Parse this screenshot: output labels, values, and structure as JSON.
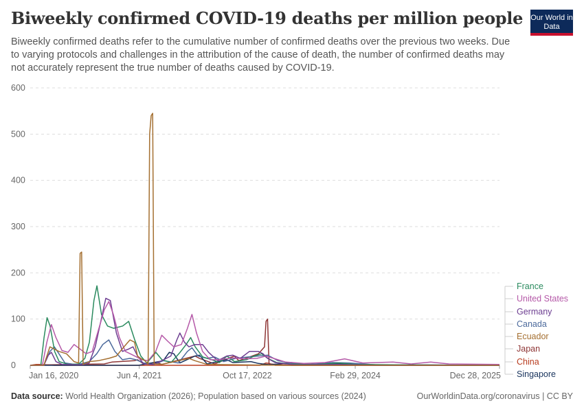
{
  "header": {
    "title": "Biweekly confirmed COVID-19 deaths per million people",
    "subtitle": "Biweekly confirmed deaths refer to the cumulative number of confirmed deaths over the previous two weeks. Due to varying protocols and challenges in the attribution of the cause of death, the number of confirmed deaths may not accurately represent the true number of deaths caused by COVID-19.",
    "logo": "Our World in Data"
  },
  "footer": {
    "source_label": "Data source:",
    "source_text": "World Health Organization (2026); Population based on various sources (2024)",
    "right_text": "OurWorldinData.org/coronavirus | CC BY"
  },
  "colors": {
    "logo_bg": "#0d2a5a",
    "logo_accent": "#c8102e",
    "grid": "#dddddd"
  },
  "chart_data": {
    "type": "line",
    "title": "Biweekly confirmed COVID-19 deaths per million people",
    "ylim": [
      0,
      600
    ],
    "yticks": [
      0,
      100,
      200,
      300,
      400,
      500,
      600
    ],
    "xlim": [
      "2020-01-01",
      "2026-01-01"
    ],
    "xticks": [
      {
        "date": "2020-01-16",
        "label": "Jan 16, 2020"
      },
      {
        "date": "2021-06-04",
        "label": "Jun 4, 2021"
      },
      {
        "date": "2022-10-17",
        "label": "Oct 17, 2022"
      },
      {
        "date": "2024-02-29",
        "label": "Feb 29, 2024"
      },
      {
        "date": "2025-12-28",
        "label": "Dec 28, 2025"
      }
    ],
    "grid": true,
    "legend_position": "right",
    "series": [
      {
        "name": "France",
        "color": "#2a8a5e",
        "points": [
          [
            "2020-01-16",
            0
          ],
          [
            "2020-03-05",
            0
          ],
          [
            "2020-03-20",
            60
          ],
          [
            "2020-04-03",
            103
          ],
          [
            "2020-04-17",
            85
          ],
          [
            "2020-05-08",
            30
          ],
          [
            "2020-05-29",
            8
          ],
          [
            "2020-07-10",
            2
          ],
          [
            "2020-08-28",
            3
          ],
          [
            "2020-09-25",
            15
          ],
          [
            "2020-10-16",
            50
          ],
          [
            "2020-11-06",
            140
          ],
          [
            "2020-11-20",
            172
          ],
          [
            "2020-12-11",
            110
          ],
          [
            "2021-01-08",
            85
          ],
          [
            "2021-02-05",
            80
          ],
          [
            "2021-03-19",
            85
          ],
          [
            "2021-04-16",
            95
          ],
          [
            "2021-05-14",
            55
          ],
          [
            "2021-06-11",
            20
          ],
          [
            "2021-07-09",
            5
          ],
          [
            "2021-08-20",
            28
          ],
          [
            "2021-09-17",
            12
          ],
          [
            "2021-10-29",
            6
          ],
          [
            "2021-12-10",
            28
          ],
          [
            "2022-01-07",
            45
          ],
          [
            "2022-01-28",
            60
          ],
          [
            "2022-02-18",
            40
          ],
          [
            "2022-03-25",
            18
          ],
          [
            "2022-05-06",
            12
          ],
          [
            "2022-06-10",
            6
          ],
          [
            "2022-07-15",
            20
          ],
          [
            "2022-08-19",
            8
          ],
          [
            "2022-10-14",
            12
          ],
          [
            "2022-11-18",
            20
          ],
          [
            "2022-12-23",
            25
          ],
          [
            "2023-01-20",
            15
          ],
          [
            "2023-03-03",
            6
          ],
          [
            "2023-05-05",
            3
          ],
          [
            "2023-09-01",
            2
          ],
          [
            "2023-12-15",
            5
          ],
          [
            "2024-03-01",
            2
          ],
          [
            "2024-09-01",
            1
          ],
          [
            "2025-12-28",
            0
          ]
        ]
      },
      {
        "name": "United States",
        "color": "#b559a8",
        "points": [
          [
            "2020-01-16",
            0
          ],
          [
            "2020-03-12",
            0
          ],
          [
            "2020-04-02",
            50
          ],
          [
            "2020-04-23",
            88
          ],
          [
            "2020-05-14",
            60
          ],
          [
            "2020-06-11",
            32
          ],
          [
            "2020-07-09",
            28
          ],
          [
            "2020-08-06",
            45
          ],
          [
            "2020-09-03",
            35
          ],
          [
            "2020-10-01",
            25
          ],
          [
            "2020-10-29",
            30
          ],
          [
            "2020-11-26",
            75
          ],
          [
            "2020-12-24",
            120
          ],
          [
            "2021-01-14",
            138
          ],
          [
            "2021-02-04",
            110
          ],
          [
            "2021-03-04",
            60
          ],
          [
            "2021-04-01",
            30
          ],
          [
            "2021-05-06",
            22
          ],
          [
            "2021-06-17",
            12
          ],
          [
            "2021-07-15",
            10
          ],
          [
            "2021-08-19",
            30
          ],
          [
            "2021-09-16",
            65
          ],
          [
            "2021-10-14",
            52
          ],
          [
            "2021-11-11",
            40
          ],
          [
            "2021-12-16",
            45
          ],
          [
            "2022-01-13",
            80
          ],
          [
            "2022-02-03",
            110
          ],
          [
            "2022-02-24",
            70
          ],
          [
            "2022-03-24",
            30
          ],
          [
            "2022-04-28",
            12
          ],
          [
            "2022-06-09",
            12
          ],
          [
            "2022-08-11",
            16
          ],
          [
            "2022-10-06",
            14
          ],
          [
            "2022-12-01",
            15
          ],
          [
            "2023-01-12",
            20
          ],
          [
            "2023-02-16",
            15
          ],
          [
            "2023-04-13",
            7
          ],
          [
            "2023-07-06",
            4
          ],
          [
            "2023-10-12",
            6
          ],
          [
            "2024-01-11",
            14
          ],
          [
            "2024-04-04",
            5
          ],
          [
            "2024-08-22",
            7
          ],
          [
            "2024-11-14",
            3
          ],
          [
            "2025-02-13",
            7
          ],
          [
            "2025-05-08",
            3
          ],
          [
            "2025-12-28",
            2
          ]
        ]
      },
      {
        "name": "Germany",
        "color": "#6d3e91",
        "points": [
          [
            "2020-01-16",
            0
          ],
          [
            "2020-03-19",
            0
          ],
          [
            "2020-04-09",
            22
          ],
          [
            "2020-04-23",
            28
          ],
          [
            "2020-05-14",
            8
          ],
          [
            "2020-06-11",
            2
          ],
          [
            "2020-09-17",
            1
          ],
          [
            "2020-10-15",
            5
          ],
          [
            "2020-11-12",
            40
          ],
          [
            "2020-12-10",
            100
          ],
          [
            "2020-12-31",
            145
          ],
          [
            "2021-01-21",
            140
          ],
          [
            "2021-02-18",
            70
          ],
          [
            "2021-03-18",
            30
          ],
          [
            "2021-04-15",
            35
          ],
          [
            "2021-05-06",
            40
          ],
          [
            "2021-05-27",
            20
          ],
          [
            "2021-06-24",
            3
          ],
          [
            "2021-08-05",
            2
          ],
          [
            "2021-09-16",
            10
          ],
          [
            "2021-10-28",
            20
          ],
          [
            "2021-11-25",
            55
          ],
          [
            "2021-12-09",
            70
          ],
          [
            "2021-12-30",
            50
          ],
          [
            "2022-01-20",
            40
          ],
          [
            "2022-02-17",
            45
          ],
          [
            "2022-03-24",
            45
          ],
          [
            "2022-04-21",
            28
          ],
          [
            "2022-06-02",
            10
          ],
          [
            "2022-07-14",
            20
          ],
          [
            "2022-08-11",
            22
          ],
          [
            "2022-09-15",
            15
          ],
          [
            "2022-10-27",
            30
          ],
          [
            "2022-12-08",
            30
          ],
          [
            "2022-12-29",
            25
          ],
          [
            "2023-01-19",
            15
          ],
          [
            "2023-02-23",
            6
          ],
          [
            "2023-04-20",
            3
          ],
          [
            "2023-06-01",
            1
          ],
          [
            "2023-12-15",
            2
          ],
          [
            "2024-06-01",
            0
          ],
          [
            "2025-12-28",
            0
          ]
        ]
      },
      {
        "name": "Canada",
        "color": "#4c6a9c",
        "points": [
          [
            "2020-01-16",
            0
          ],
          [
            "2020-03-19",
            0
          ],
          [
            "2020-04-16",
            30
          ],
          [
            "2020-05-07",
            40
          ],
          [
            "2020-05-28",
            25
          ],
          [
            "2020-06-25",
            5
          ],
          [
            "2020-08-20",
            1
          ],
          [
            "2020-10-15",
            8
          ],
          [
            "2020-11-19",
            25
          ],
          [
            "2020-12-17",
            45
          ],
          [
            "2021-01-14",
            55
          ],
          [
            "2021-02-11",
            30
          ],
          [
            "2021-03-18",
            12
          ],
          [
            "2021-04-22",
            15
          ],
          [
            "2021-05-20",
            12
          ],
          [
            "2021-06-24",
            5
          ],
          [
            "2021-08-12",
            2
          ],
          [
            "2021-09-23",
            10
          ],
          [
            "2021-10-21",
            8
          ],
          [
            "2021-12-02",
            5
          ],
          [
            "2022-01-13",
            30
          ],
          [
            "2022-02-03",
            38
          ],
          [
            "2022-03-03",
            20
          ],
          [
            "2022-04-14",
            15
          ],
          [
            "2022-05-19",
            18
          ],
          [
            "2022-06-30",
            8
          ],
          [
            "2022-08-25",
            15
          ],
          [
            "2022-10-20",
            18
          ],
          [
            "2022-12-08",
            20
          ],
          [
            "2023-01-19",
            22
          ],
          [
            "2023-03-09",
            10
          ],
          [
            "2023-05-04",
            5
          ],
          [
            "2023-08-03",
            2
          ],
          [
            "2023-11-16",
            6
          ],
          [
            "2024-02-01",
            5
          ],
          [
            "2024-06-01",
            1
          ],
          [
            "2024-12-01",
            1
          ],
          [
            "2025-12-28",
            0
          ]
        ]
      },
      {
        "name": "Ecuador",
        "color": "#a46f30",
        "points": [
          [
            "2020-01-16",
            0
          ],
          [
            "2020-03-19",
            0
          ],
          [
            "2020-03-26",
            10
          ],
          [
            "2020-04-16",
            40
          ],
          [
            "2020-05-07",
            35
          ],
          [
            "2020-05-28",
            30
          ],
          [
            "2020-07-02",
            25
          ],
          [
            "2020-08-06",
            8
          ],
          [
            "2020-08-27",
            5
          ],
          [
            "2020-09-03",
            242
          ],
          [
            "2020-09-10",
            245
          ],
          [
            "2020-09-17",
            2
          ],
          [
            "2020-10-15",
            8
          ],
          [
            "2020-11-26",
            10
          ],
          [
            "2021-01-14",
            15
          ],
          [
            "2021-02-18",
            20
          ],
          [
            "2021-03-25",
            40
          ],
          [
            "2021-04-22",
            55
          ],
          [
            "2021-05-13",
            50
          ],
          [
            "2021-05-27",
            20
          ],
          [
            "2021-06-10",
            15
          ],
          [
            "2021-07-01",
            10
          ],
          [
            "2021-07-15",
            2
          ],
          [
            "2021-07-22",
            500
          ],
          [
            "2021-07-29",
            540
          ],
          [
            "2021-08-05",
            545
          ],
          [
            "2021-08-12",
            3
          ],
          [
            "2021-09-16",
            2
          ],
          [
            "2022-01-20",
            15
          ],
          [
            "2022-02-17",
            10
          ],
          [
            "2022-04-14",
            2
          ],
          [
            "2022-09-01",
            1
          ],
          [
            "2023-06-01",
            0
          ],
          [
            "2025-12-28",
            0
          ]
        ]
      },
      {
        "name": "Japan",
        "color": "#8e3535",
        "points": [
          [
            "2020-01-16",
            0
          ],
          [
            "2020-04-23",
            1
          ],
          [
            "2020-12-24",
            3
          ],
          [
            "2021-01-28",
            7
          ],
          [
            "2021-05-13",
            10
          ],
          [
            "2021-05-27",
            12
          ],
          [
            "2021-06-24",
            3
          ],
          [
            "2021-08-26",
            6
          ],
          [
            "2021-09-16",
            2
          ],
          [
            "2022-02-17",
            20
          ],
          [
            "2022-03-10",
            15
          ],
          [
            "2022-05-19",
            3
          ],
          [
            "2022-08-18",
            20
          ],
          [
            "2022-09-08",
            10
          ],
          [
            "2022-12-08",
            25
          ],
          [
            "2023-01-05",
            40
          ],
          [
            "2023-01-12",
            95
          ],
          [
            "2023-01-19",
            100
          ],
          [
            "2023-01-26",
            3
          ],
          [
            "2023-05-11",
            0
          ],
          [
            "2025-12-28",
            0
          ]
        ]
      },
      {
        "name": "China",
        "color": "#b83c1f",
        "points": [
          [
            "2020-01-16",
            0
          ],
          [
            "2020-02-13",
            2
          ],
          [
            "2020-02-27",
            2
          ],
          [
            "2020-04-02",
            1
          ],
          [
            "2020-05-07",
            0
          ],
          [
            "2022-12-15",
            0
          ],
          [
            "2023-01-12",
            5
          ],
          [
            "2023-01-26",
            4
          ],
          [
            "2023-02-23",
            0
          ],
          [
            "2025-12-28",
            0
          ]
        ]
      },
      {
        "name": "Singapore",
        "color": "#18335c",
        "points": [
          [
            "2020-01-16",
            0
          ],
          [
            "2020-05-07",
            0
          ],
          [
            "2021-06-01",
            0
          ],
          [
            "2021-09-23",
            10
          ],
          [
            "2021-10-21",
            28
          ],
          [
            "2021-11-11",
            25
          ],
          [
            "2021-12-09",
            5
          ],
          [
            "2022-02-17",
            20
          ],
          [
            "2022-03-10",
            22
          ],
          [
            "2022-04-14",
            3
          ],
          [
            "2022-07-14",
            12
          ],
          [
            "2022-08-11",
            6
          ],
          [
            "2022-11-03",
            8
          ],
          [
            "2022-12-08",
            4
          ],
          [
            "2023-02-01",
            1
          ],
          [
            "2023-05-11",
            6
          ],
          [
            "2023-06-22",
            2
          ],
          [
            "2023-12-14",
            3
          ],
          [
            "2024-06-01",
            1
          ],
          [
            "2025-12-28",
            0
          ]
        ]
      }
    ],
    "legend": [
      {
        "name": "France",
        "color": "#2a8a5e"
      },
      {
        "name": "United States",
        "color": "#b559a8"
      },
      {
        "name": "Germany",
        "color": "#6d3e91"
      },
      {
        "name": "Canada",
        "color": "#4c6a9c"
      },
      {
        "name": "Ecuador",
        "color": "#a46f30"
      },
      {
        "name": "Japan",
        "color": "#8e3535"
      },
      {
        "name": "China",
        "color": "#b83c1f"
      },
      {
        "name": "Singapore",
        "color": "#18335c"
      }
    ]
  }
}
